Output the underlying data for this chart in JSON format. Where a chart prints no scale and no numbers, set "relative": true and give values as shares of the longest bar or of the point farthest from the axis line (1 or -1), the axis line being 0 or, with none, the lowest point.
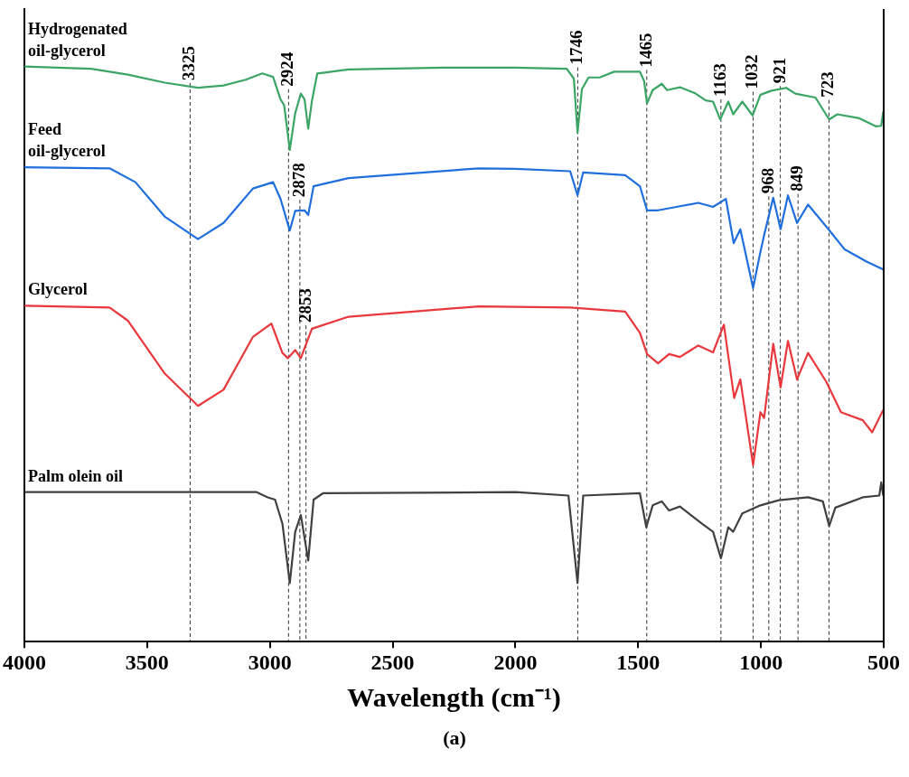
{
  "chart_data": {
    "type": "line",
    "relative": true,
    "xlabel": "Wavelength (cm⁻¹)",
    "annotations": [
      "(a)"
    ],
    "xlim": [
      4000,
      500
    ],
    "xticks": [
      4000,
      3500,
      3000,
      2500,
      2000,
      1500,
      1000,
      500
    ],
    "tick_labels": "x",
    "grid": false,
    "legend": false,
    "series": [
      {
        "name": "Hydrogenated oil-glycerol",
        "color": "#3aa564",
        "x": [
          4000,
          3728,
          3578,
          3428,
          3293,
          3189,
          3099,
          3031,
          2987,
          2957,
          2942,
          2919,
          2897,
          2874,
          2859,
          2844,
          2829,
          2807,
          2680,
          2298,
          2000,
          1791,
          1762,
          1747,
          1729,
          1702,
          1657,
          1598,
          1493,
          1476,
          1464,
          1441,
          1404,
          1382,
          1330,
          1270,
          1225,
          1195,
          1166,
          1133,
          1113,
          1076,
          1034,
          1002,
          957,
          897,
          860,
          778,
          722,
          689,
          599,
          532,
          510,
          502
        ],
        "values": [
          1.0,
          0.996,
          0.986,
          0.972,
          0.963,
          0.967,
          0.977,
          0.988,
          0.982,
          0.943,
          0.933,
          0.855,
          0.919,
          0.953,
          0.943,
          0.892,
          0.94,
          0.988,
          0.995,
          0.998,
          0.998,
          0.996,
          0.979,
          0.885,
          0.961,
          0.981,
          0.981,
          0.991,
          0.991,
          0.975,
          0.936,
          0.959,
          0.97,
          0.959,
          0.964,
          0.954,
          0.941,
          0.939,
          0.908,
          0.939,
          0.917,
          0.939,
          0.915,
          0.951,
          0.958,
          0.963,
          0.953,
          0.946,
          0.908,
          0.917,
          0.91,
          0.896,
          0.897,
          0.922
        ]
      },
      {
        "name": "Feed oil-glycerol",
        "color": "#1f6fdc",
        "x": [
          4000,
          3653,
          3548,
          3428,
          3293,
          3189,
          3069,
          2987,
          2957,
          2919,
          2897,
          2859,
          2844,
          2822,
          2680,
          2149,
          2000,
          1777,
          1747,
          1724,
          1553,
          1493,
          1464,
          1419,
          1344,
          1255,
          1195,
          1143,
          1111,
          1084,
          1032,
          1002,
          987,
          950,
          920,
          890,
          853,
          808,
          719,
          659,
          570,
          502
        ],
        "values": [
          0.825,
          0.823,
          0.799,
          0.739,
          0.7,
          0.728,
          0.788,
          0.799,
          0.77,
          0.715,
          0.749,
          0.75,
          0.742,
          0.792,
          0.806,
          0.823,
          0.822,
          0.818,
          0.776,
          0.816,
          0.811,
          0.792,
          0.75,
          0.75,
          0.756,
          0.763,
          0.756,
          0.77,
          0.693,
          0.717,
          0.615,
          0.678,
          0.707,
          0.772,
          0.717,
          0.776,
          0.728,
          0.76,
          0.714,
          0.682,
          0.661,
          0.647
        ]
      },
      {
        "name": "Glycerol",
        "color": "#e8383d",
        "x": [
          4000,
          3653,
          3578,
          3428,
          3293,
          3189,
          3069,
          2994,
          2949,
          2927,
          2897,
          2874,
          2829,
          2680,
          2149,
          1777,
          1553,
          1493,
          1464,
          1419,
          1374,
          1330,
          1255,
          1195,
          1151,
          1109,
          1084,
          1032,
          1002,
          987,
          950,
          920,
          890,
          853,
          808,
          734,
          674,
          585,
          547,
          502
        ],
        "values": [
          0.584,
          0.581,
          0.558,
          0.466,
          0.41,
          0.438,
          0.53,
          0.553,
          0.502,
          0.493,
          0.507,
          0.493,
          0.544,
          0.565,
          0.583,
          0.581,
          0.574,
          0.537,
          0.5,
          0.484,
          0.5,
          0.495,
          0.515,
          0.503,
          0.551,
          0.424,
          0.456,
          0.307,
          0.399,
          0.389,
          0.518,
          0.442,
          0.523,
          0.456,
          0.502,
          0.452,
          0.399,
          0.385,
          0.364,
          0.403
        ]
      },
      {
        "name": "Palm olein oil",
        "color": "#404040",
        "x": [
          4000,
          3054,
          3009,
          2979,
          2949,
          2919,
          2897,
          2874,
          2844,
          2822,
          2784,
          2000,
          1784,
          1747,
          1724,
          1493,
          1467,
          1441,
          1404,
          1374,
          1330,
          1240,
          1195,
          1163,
          1133,
          1113,
          1076,
          1002,
          927,
          808,
          748,
          722,
          697,
          585,
          518,
          510,
          502
        ],
        "values": [
          0.26,
          0.26,
          0.251,
          0.247,
          0.205,
          0.102,
          0.191,
          0.22,
          0.141,
          0.247,
          0.258,
          0.26,
          0.254,
          0.102,
          0.254,
          0.258,
          0.199,
          0.237,
          0.244,
          0.228,
          0.235,
          0.205,
          0.191,
          0.145,
          0.199,
          0.191,
          0.223,
          0.237,
          0.246,
          0.251,
          0.244,
          0.201,
          0.233,
          0.251,
          0.254,
          0.277,
          0.254
        ]
      }
    ],
    "ref_lines": [
      {
        "axis": "x",
        "value": 3325,
        "label": "3325",
        "color": "#333333",
        "line_style": "dashed"
      },
      {
        "axis": "x",
        "value": 2924,
        "label": "2924",
        "color": "#333333",
        "line_style": "dashed"
      },
      {
        "axis": "x",
        "value": 2878,
        "label": "2878",
        "color": "#333333",
        "line_style": "dashed"
      },
      {
        "axis": "x",
        "value": 2853,
        "label": "2853",
        "color": "#333333",
        "line_style": "dashed"
      },
      {
        "axis": "x",
        "value": 1746,
        "label": "1746",
        "color": "#333333",
        "line_style": "dashed"
      },
      {
        "axis": "x",
        "value": 1465,
        "label": "1465",
        "color": "#333333",
        "line_style": "dashed"
      },
      {
        "axis": "x",
        "value": 1163,
        "label": "1163",
        "color": "#333333",
        "line_style": "dashed"
      },
      {
        "axis": "x",
        "value": 1032,
        "label": "1032",
        "color": "#333333",
        "line_style": "dashed"
      },
      {
        "axis": "x",
        "value": 968,
        "label": "968",
        "color": "#333333",
        "line_style": "dashed"
      },
      {
        "axis": "x",
        "value": 921,
        "label": "921",
        "color": "#333333",
        "line_style": "dashed"
      },
      {
        "axis": "x",
        "value": 849,
        "label": "849",
        "color": "#333333",
        "line_style": "dashed"
      },
      {
        "axis": "x",
        "value": 723,
        "label": "723",
        "color": "#333333",
        "line_style": "dashed"
      }
    ]
  }
}
